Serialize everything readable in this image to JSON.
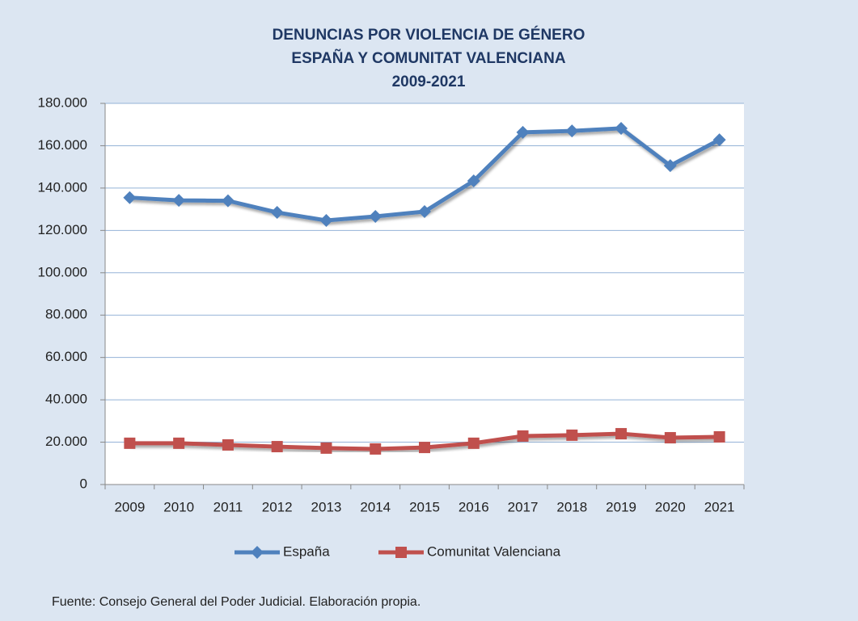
{
  "chart_data": {
    "type": "line",
    "title": [
      "DENUNCIAS POR VIOLENCIA DE GÉNERO",
      "ESPAÑA Y COMUNITAT VALENCIANA",
      "2009-2021"
    ],
    "categories": [
      "2009",
      "2010",
      "2011",
      "2012",
      "2013",
      "2014",
      "2015",
      "2016",
      "2017",
      "2018",
      "2019",
      "2020",
      "2021"
    ],
    "series": [
      {
        "name": "España",
        "color": "#4f81bd",
        "marker": "diamond",
        "values": [
          135500,
          134200,
          134000,
          128500,
          124700,
          126600,
          128900,
          143400,
          166300,
          167000,
          168200,
          150600,
          162800
        ]
      },
      {
        "name": "Comunitat Valenciana",
        "color": "#c0504d",
        "marker": "square",
        "values": [
          19500,
          19500,
          18700,
          17900,
          17200,
          16800,
          17500,
          19500,
          22900,
          23300,
          24000,
          22100,
          22500
        ]
      }
    ],
    "ylim": [
      0,
      180000
    ],
    "yticks": [
      0,
      {
        "value": 20000,
        "label": "20.000"
      },
      {
        "value": 40000,
        "label": "40.000"
      },
      {
        "value": 60000,
        "label": "60.000"
      },
      {
        "value": 80000,
        "label": "80.000"
      },
      {
        "value": 100000,
        "label": "100.000"
      },
      {
        "value": 120000,
        "label": "120.000"
      },
      {
        "value": 140000,
        "label": "140.000"
      },
      {
        "value": 160000,
        "label": "160.000"
      },
      {
        "value": 180000,
        "label": "180.000"
      }
    ],
    "grid": true,
    "legend": "bottom",
    "source": "Fuente:  Consejo General del Poder Judicial. Elaboración propia."
  }
}
